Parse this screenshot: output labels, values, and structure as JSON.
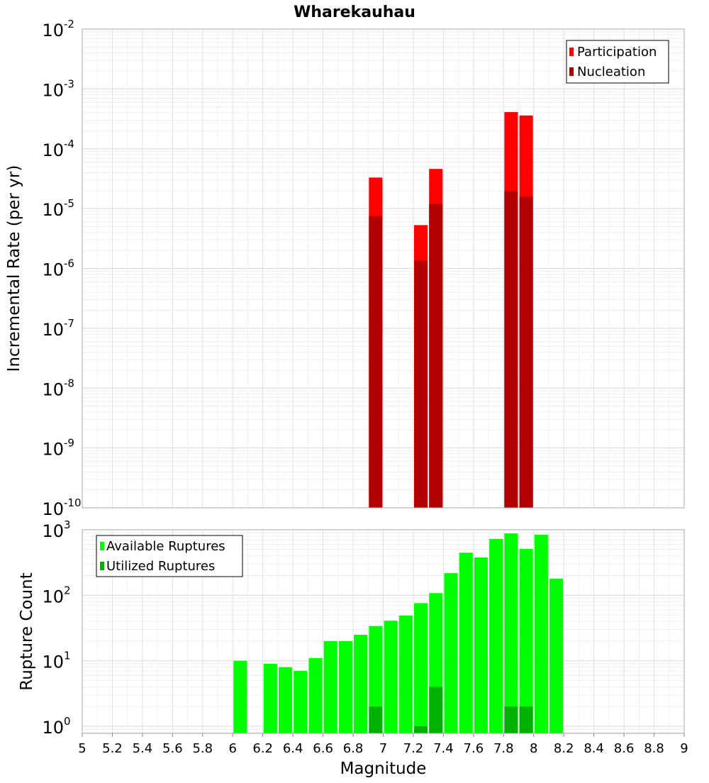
{
  "title": "Wharekauhau",
  "chart_data": [
    {
      "type": "bar",
      "panel": "top",
      "title": "Wharekauhau",
      "ylabel": "Incremental Rate (per yr)",
      "xlabel": "",
      "xlim": [
        5,
        9
      ],
      "ylim": [
        1e-10,
        0.01
      ],
      "y_scale": "log",
      "y_tick_exponents": [
        -2,
        -3,
        -4,
        -5,
        -6,
        -7,
        -8,
        -9,
        -10
      ],
      "grid": true,
      "legend_position": "top-right",
      "x": [
        6.95,
        7.25,
        7.35,
        7.85,
        7.95
      ],
      "series": [
        {
          "name": "Participation",
          "color": "#ff0000",
          "values": [
            3.3e-05,
            5.3e-06,
            4.6e-05,
            0.00041,
            0.00036
          ]
        },
        {
          "name": "Nucleation",
          "color": "#b20000",
          "values": [
            7.5e-06,
            1.35e-06,
            1.2e-05,
            1.95e-05,
            1.6e-05
          ]
        }
      ]
    },
    {
      "type": "bar",
      "panel": "bottom",
      "xlabel": "Magnitude",
      "ylabel": "Rupture Count",
      "xlim": [
        5,
        9
      ],
      "ylim": [
        0.78,
        1000
      ],
      "y_scale": "log",
      "y_tick_exponents": [
        0,
        1,
        2,
        3
      ],
      "x_ticks": [
        "5",
        "5.2",
        "5.4",
        "5.6",
        "5.8",
        "6",
        "6.2",
        "6.4",
        "6.6",
        "6.8",
        "7",
        "7.2",
        "7.4",
        "7.6",
        "7.8",
        "8",
        "8.2",
        "8.4",
        "8.6",
        "8.8",
        "9"
      ],
      "grid": true,
      "legend_position": "top-left",
      "x": [
        6.05,
        6.25,
        6.35,
        6.45,
        6.55,
        6.65,
        6.75,
        6.85,
        6.95,
        7.05,
        7.15,
        7.25,
        7.35,
        7.45,
        7.55,
        7.65,
        7.75,
        7.85,
        7.95,
        8.05,
        8.15
      ],
      "series": [
        {
          "name": "Available Ruptures",
          "color": "#00ff00",
          "values": [
            10,
            9,
            8,
            7,
            11,
            20,
            20,
            25,
            34,
            41,
            49,
            76,
            108,
            218,
            448,
            378,
            727,
            880,
            512,
            840,
            180
          ]
        },
        {
          "name": "Utilized Ruptures",
          "color": "#00b200",
          "values": [
            0,
            0,
            0,
            0,
            0,
            0,
            0,
            0,
            2,
            0,
            0,
            1,
            4,
            0,
            0,
            0,
            0,
            2,
            2,
            0,
            0
          ]
        }
      ]
    }
  ]
}
